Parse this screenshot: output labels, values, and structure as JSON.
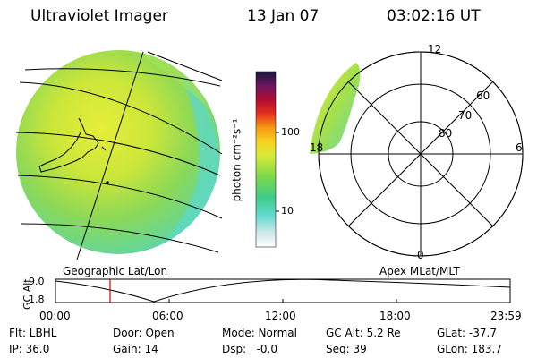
{
  "header": {
    "instrument": "Ultraviolet Imager",
    "date": "13 Jan 07",
    "time": "03:02:16 UT"
  },
  "colorbar": {
    "unit_label": "photon cm⁻²s⁻¹",
    "ticks": [
      "100",
      "10"
    ]
  },
  "panels": {
    "left_caption": "Geographic Lat/Lon",
    "right_caption": "Apex MLat/MLT",
    "polar_labels": {
      "top": "12",
      "left": "18",
      "right": "6",
      "bottom": "0",
      "ring_60": "60",
      "ring_70": "70",
      "ring_80": "80"
    }
  },
  "timeline": {
    "ylabel": "GC Alt",
    "y_high": "9.0",
    "y_low": "1.8",
    "x_ticks": [
      "00:00",
      "06:00",
      "12:00",
      "18:00",
      "23:59"
    ],
    "marker_time": "03:02",
    "marker_color": "#cc0000"
  },
  "status": {
    "row1": [
      "Flt: LBHL",
      "Door: Open",
      "Mode: Normal",
      "GC Alt: 5.2 Re",
      "GLat: -37.7"
    ],
    "row2": [
      "IP: 36.0",
      "Gain: 14",
      "Dsp:   -0.0",
      "Seq: 39",
      "GLon: 183.7"
    ]
  }
}
